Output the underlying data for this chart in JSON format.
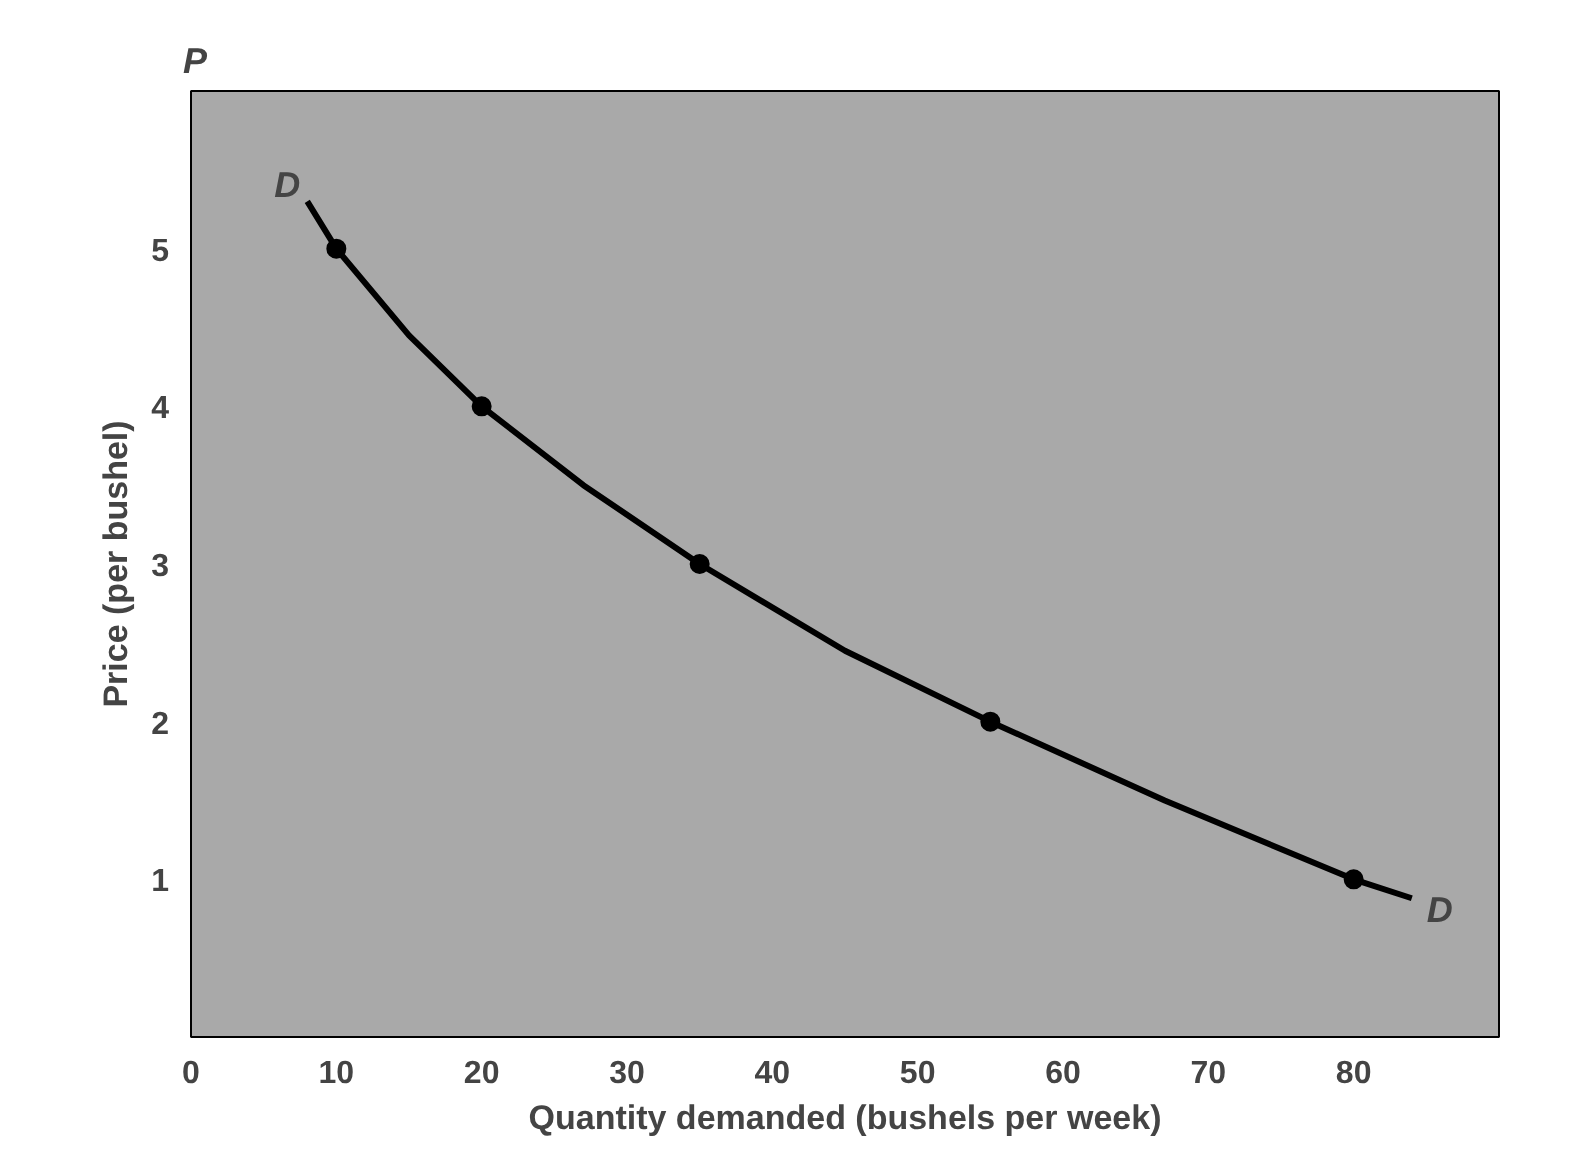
{
  "chart_data": {
    "type": "line",
    "xlabel": "Quantity demanded (bushels per week)",
    "ylabel": "Price (per bushel)",
    "xlim": [
      0,
      90
    ],
    "ylim": [
      0,
      6
    ],
    "xticks": [
      0,
      10,
      20,
      30,
      40,
      50,
      60,
      70,
      80
    ],
    "yticks": [
      1,
      2,
      3,
      4,
      5
    ],
    "grid": false,
    "series": [
      {
        "color": "#000000",
        "marker": "none",
        "line_style": "solid",
        "x": [
          8,
          10,
          15,
          20,
          27,
          35,
          45,
          55,
          67,
          80,
          84
        ],
        "values": [
          5.3,
          5,
          4.45,
          4,
          3.5,
          3,
          2.45,
          2,
          1.5,
          1,
          0.88
        ]
      },
      {
        "type": "scatter",
        "color": "#000000",
        "marker": "circle",
        "x": [
          10,
          20,
          35,
          55,
          80
        ],
        "values": [
          5,
          4,
          3,
          2,
          1
        ]
      }
    ],
    "annotations": [
      "P",
      "D",
      "D"
    ]
  }
}
